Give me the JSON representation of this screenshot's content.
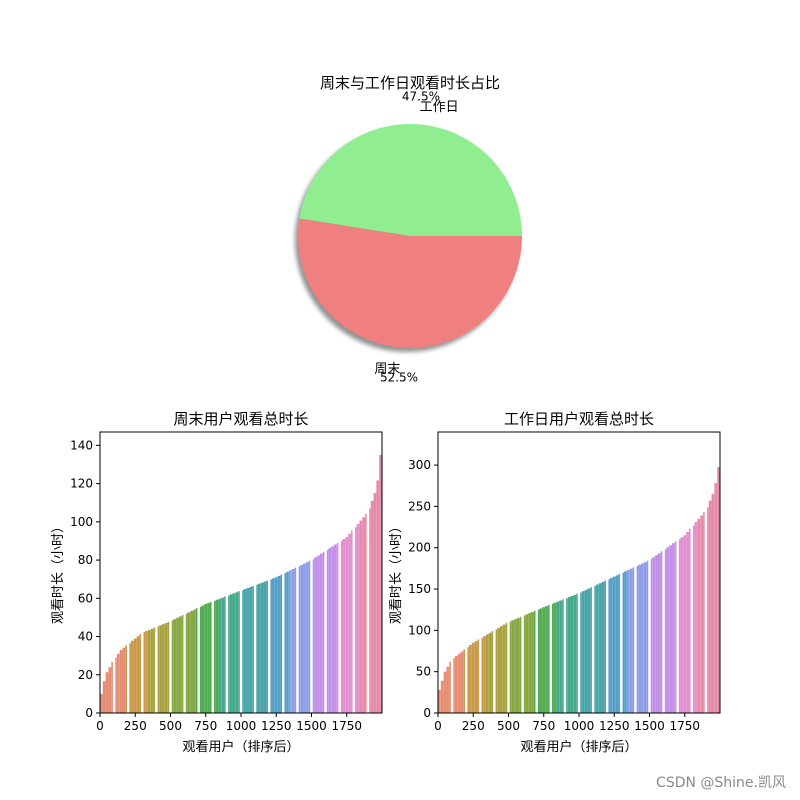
{
  "watermark": "CSDN @Shine.凯风",
  "chart_data": [
    {
      "type": "pie",
      "title": "周末与工作日观看时长占比",
      "categories": [
        "工作日",
        "周末"
      ],
      "values": [
        47.5,
        52.5
      ],
      "pct_labels": [
        "47.5%",
        "52.5%"
      ],
      "colors": [
        "#90ee90",
        "#f08080"
      ],
      "shadow": true
    },
    {
      "type": "bar",
      "title": "周末用户观看总时长",
      "xlabel": "观看用户（排序后）",
      "ylabel": "观看时长（小时）",
      "xlim": [
        0,
        2000
      ],
      "ylim": [
        0,
        147
      ],
      "xticks": [
        0,
        250,
        500,
        750,
        1000,
        1250,
        1500,
        1750
      ],
      "yticks": [
        0,
        20,
        40,
        60,
        80,
        100,
        120,
        140
      ],
      "n_users": 2000,
      "profile_x": [
        0,
        10,
        40,
        100,
        150,
        300,
        500,
        750,
        1000,
        1250,
        1500,
        1750,
        1900,
        1950,
        1980,
        2000
      ],
      "profile_y": [
        0,
        10,
        20,
        28,
        33,
        42,
        48,
        57,
        64,
        71,
        80,
        92,
        105,
        115,
        125,
        145
      ]
    },
    {
      "type": "bar",
      "title": "工作日用户观看总时长",
      "xlabel": "观看用户（排序后）",
      "ylabel": "观看时长（小时）",
      "xlim": [
        0,
        2000
      ],
      "ylim": [
        0,
        340
      ],
      "xticks": [
        0,
        250,
        500,
        750,
        1000,
        1250,
        1500,
        1750
      ],
      "yticks": [
        0,
        50,
        100,
        150,
        200,
        250,
        300
      ],
      "n_users": 2000,
      "profile_x": [
        0,
        10,
        50,
        100,
        250,
        500,
        750,
        1000,
        1250,
        1500,
        1750,
        1900,
        1950,
        1980,
        2000
      ],
      "profile_y": [
        0,
        28,
        50,
        65,
        85,
        110,
        128,
        145,
        165,
        185,
        215,
        245,
        265,
        285,
        310
      ]
    }
  ]
}
